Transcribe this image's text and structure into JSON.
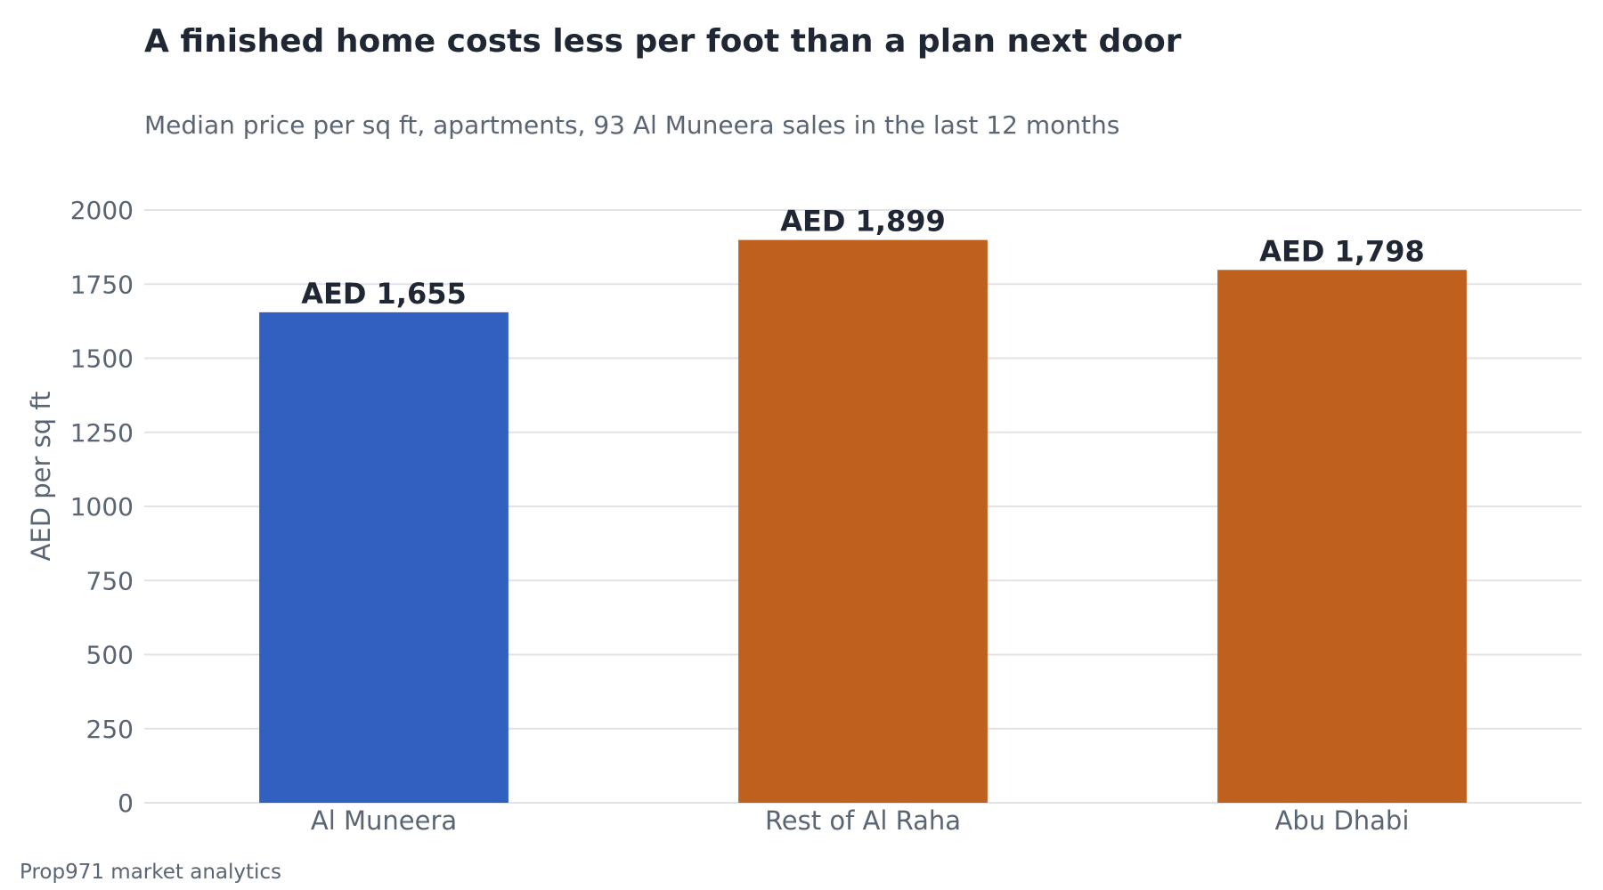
{
  "chart_data": {
    "type": "bar",
    "title": "A finished home costs less per foot than a plan next door",
    "subtitle": "Median price per sq ft, apartments, 93 Al Muneera sales in the last 12 months",
    "xlabel": "",
    "ylabel": "AED per sq ft",
    "categories": [
      "Al Muneera",
      "Rest of Al Raha",
      "Abu Dhabi"
    ],
    "values": [
      1655,
      1899,
      1798
    ],
    "data_labels": [
      "AED 1,655",
      "AED 1,899",
      "AED 1,798"
    ],
    "colors": [
      "#3060c0",
      "#c0601f",
      "#c0601f"
    ],
    "ylim": [
      0,
      2000
    ],
    "yticks": [
      0,
      250,
      500,
      750,
      1000,
      1250,
      1500,
      1750,
      2000
    ],
    "grid": true,
    "legend": "none",
    "source": "Prop971 market analytics"
  }
}
